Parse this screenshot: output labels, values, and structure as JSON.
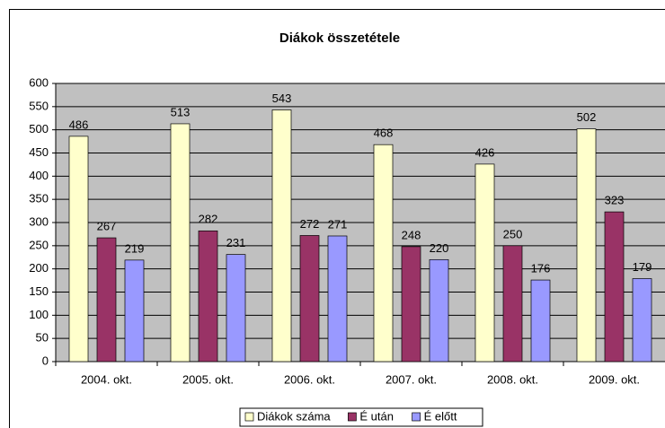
{
  "chart_data": {
    "type": "bar",
    "title": "Diákok összetétele",
    "categories": [
      "2004. okt.",
      "2005. okt.",
      "2006. okt.",
      "2007. okt.",
      "2008. okt.",
      "2009. okt."
    ],
    "series": [
      {
        "name": "Diákok száma",
        "color": "#ffffcc",
        "values": [
          486,
          513,
          543,
          468,
          426,
          502
        ]
      },
      {
        "name": "É után",
        "color": "#993366",
        "values": [
          267,
          282,
          272,
          248,
          250,
          323
        ]
      },
      {
        "name": "É előtt",
        "color": "#9999ff",
        "values": [
          219,
          231,
          271,
          220,
          176,
          179
        ]
      }
    ],
    "ylim": [
      0,
      600
    ],
    "yticks": [
      0,
      50,
      100,
      150,
      200,
      250,
      300,
      350,
      400,
      450,
      500,
      550,
      600
    ],
    "grid": true,
    "legend": "bottom"
  }
}
